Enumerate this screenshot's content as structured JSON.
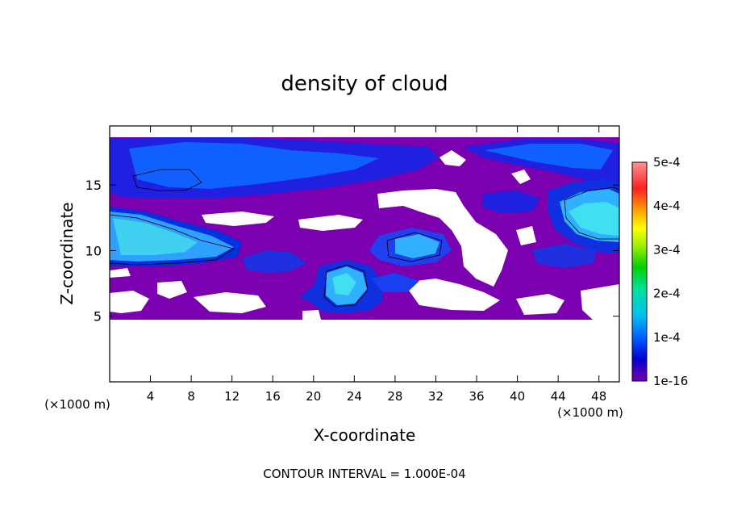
{
  "chart_data": {
    "type": "heatmap",
    "title": "density of cloud",
    "xlabel": "X-coordinate",
    "ylabel": "Z-coordinate",
    "x_unit_label": "(×1000 m)",
    "x_unit_label_right": "(×1000 m)",
    "xlim": [
      0,
      50
    ],
    "ylim": [
      0,
      19.5
    ],
    "x_ticks": [
      4,
      8,
      12,
      16,
      20,
      24,
      28,
      32,
      36,
      40,
      44,
      48
    ],
    "x_tick_labels": [
      "4",
      "8",
      "12",
      "16",
      "20",
      "24",
      "28",
      "32",
      "36",
      "40",
      "44",
      "48"
    ],
    "y_ticks": [
      5,
      10,
      15
    ],
    "y_tick_labels": [
      "5",
      "10",
      "15"
    ],
    "colorbar": {
      "labels": [
        "5e-4",
        "4e-4",
        "3e-4",
        "2e-4",
        "1e-4",
        "1e-16"
      ],
      "values": [
        0.0005,
        0.0004,
        0.0003,
        0.0002,
        0.0001,
        1e-16
      ],
      "colors": [
        "#ff8080",
        "#ff2020",
        "#ffa000",
        "#ffff00",
        "#00e000",
        "#00e0e0",
        "#0080ff",
        "#0000d0",
        "#7000b0"
      ]
    },
    "footer": "CONTOUR INTERVAL = 1.000E-04",
    "field": {
      "cloud_layer_bottom_z": 5,
      "cloud_layer_top_z": 19,
      "max_value_region": "x 0-8, z 10-12",
      "contour_level": 0.0001
    },
    "grid": false,
    "legend": "right"
  }
}
